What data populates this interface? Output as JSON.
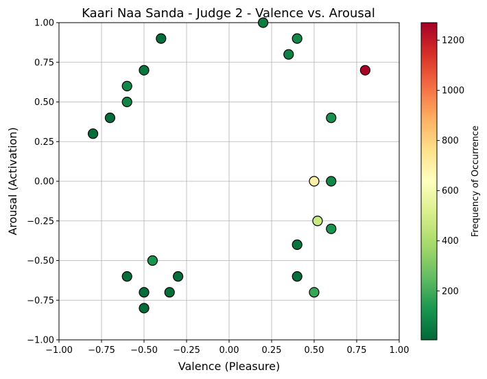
{
  "chart_data": {
    "type": "scatter",
    "title": "Kaari Naa Sanda - Judge 2 - Valence vs. Arousal",
    "xlabel": "Valence (Pleasure)",
    "ylabel": "Arousal (Activation)",
    "xlim": [
      -1.0,
      1.0
    ],
    "ylim": [
      -1.0,
      1.0
    ],
    "grid": true,
    "x_ticks": [
      "−1.00",
      "−0.75",
      "−0.50",
      "−0.25",
      "0.00",
      "0.25",
      "0.50",
      "0.75",
      "1.00"
    ],
    "y_ticks": [
      "−1.00",
      "−0.75",
      "−0.50",
      "−0.25",
      "0.00",
      "0.25",
      "0.50",
      "0.75",
      "1.00"
    ],
    "colorbar": {
      "label": "Frequency of Occurrence",
      "colormap": "RdYlGn_r",
      "range": [
        5,
        1270
      ],
      "ticks": [
        "200",
        "400",
        "600",
        "800",
        "1000",
        "1200"
      ]
    },
    "points": [
      {
        "x": -0.8,
        "y": 0.3,
        "frequency": 20
      },
      {
        "x": -0.7,
        "y": 0.4,
        "frequency": 20
      },
      {
        "x": -0.6,
        "y": 0.5,
        "frequency": 80
      },
      {
        "x": -0.6,
        "y": 0.6,
        "frequency": 90
      },
      {
        "x": -0.5,
        "y": 0.7,
        "frequency": 40
      },
      {
        "x": -0.4,
        "y": 0.9,
        "frequency": 20
      },
      {
        "x": 0.2,
        "y": 1.0,
        "frequency": 60
      },
      {
        "x": 0.35,
        "y": 0.8,
        "frequency": 70
      },
      {
        "x": 0.4,
        "y": 0.9,
        "frequency": 90
      },
      {
        "x": 0.8,
        "y": 0.7,
        "frequency": 1260
      },
      {
        "x": 0.6,
        "y": 0.4,
        "frequency": 110
      },
      {
        "x": 0.5,
        "y": 0.0,
        "frequency": 700
      },
      {
        "x": 0.6,
        "y": 0.0,
        "frequency": 90
      },
      {
        "x": 0.52,
        "y": -0.25,
        "frequency": 470
      },
      {
        "x": 0.6,
        "y": -0.3,
        "frequency": 120
      },
      {
        "x": 0.4,
        "y": -0.4,
        "frequency": 40
      },
      {
        "x": 0.4,
        "y": -0.6,
        "frequency": 20
      },
      {
        "x": 0.5,
        "y": -0.7,
        "frequency": 180
      },
      {
        "x": -0.45,
        "y": -0.5,
        "frequency": 120
      },
      {
        "x": -0.6,
        "y": -0.6,
        "frequency": 20
      },
      {
        "x": -0.3,
        "y": -0.6,
        "frequency": 20
      },
      {
        "x": -0.5,
        "y": -0.7,
        "frequency": 20
      },
      {
        "x": -0.35,
        "y": -0.7,
        "frequency": 20
      },
      {
        "x": -0.5,
        "y": -0.8,
        "frequency": 15
      }
    ]
  }
}
